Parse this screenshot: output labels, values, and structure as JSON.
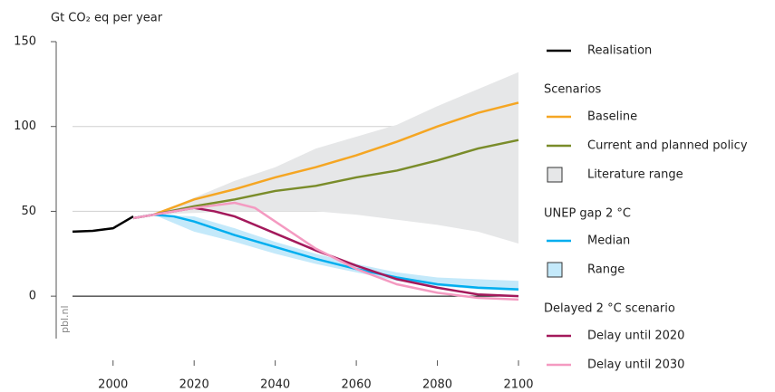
{
  "chart_data": {
    "type": "line",
    "y_axis_label": "Gt CO₂ eq per year",
    "source": "pbl.nl",
    "xlim": [
      1990,
      2100
    ],
    "xticks": [
      2000,
      2020,
      2040,
      2060,
      2080,
      2100
    ],
    "ylim": [
      -25,
      150
    ],
    "yticks": [
      0,
      50,
      100,
      150
    ],
    "groups": [
      {
        "series": [
          {
            "kind": "line",
            "name": "Realisation",
            "color": "#000000",
            "x": [
              1990,
              1995,
              2000,
              2005
            ],
            "values": [
              38,
              38.5,
              40,
              47
            ]
          }
        ]
      },
      {
        "title": "Scenarios",
        "series": [
          {
            "kind": "line",
            "name": "Baseline",
            "color": "#f5a623",
            "x": [
              2005,
              2010,
              2020,
              2030,
              2040,
              2050,
              2060,
              2070,
              2080,
              2090,
              2100
            ],
            "values": [
              46,
              48,
              57,
              63,
              70,
              76,
              83,
              91,
              100,
              108,
              114
            ]
          },
          {
            "kind": "line",
            "name": "Current and planned policy",
            "color": "#7a8c2a",
            "x": [
              2005,
              2010,
              2020,
              2030,
              2040,
              2050,
              2060,
              2070,
              2080,
              2090,
              2100
            ],
            "values": [
              46,
              48,
              53,
              57,
              62,
              65,
              70,
              74,
              80,
              87,
              92
            ]
          },
          {
            "kind": "band",
            "name": "Literature range",
            "color": "#e6e7e8",
            "x": [
              2005,
              2010,
              2020,
              2030,
              2040,
              2050,
              2060,
              2070,
              2080,
              2090,
              2100
            ],
            "upper": [
              46,
              48,
              58,
              68,
              76,
              87,
              94,
              101,
              112,
              122,
              132
            ],
            "lower": [
              46,
              48,
              49,
              50,
              50,
              50,
              48,
              45,
              42,
              38,
              31
            ]
          }
        ]
      },
      {
        "title": "UNEP gap 2 °C",
        "series": [
          {
            "kind": "line",
            "name": "Median",
            "color": "#00aeef",
            "x": [
              2005,
              2010,
              2015,
              2020,
              2030,
              2040,
              2050,
              2060,
              2070,
              2080,
              2090,
              2100
            ],
            "values": [
              46,
              48,
              47,
              44,
              36,
              29,
              22,
              16,
              11,
              7,
              5,
              4
            ]
          },
          {
            "kind": "band",
            "name": "Range",
            "color": "#c4e9fa",
            "x": [
              2010,
              2020,
              2030,
              2040,
              2050,
              2060,
              2070,
              2080,
              2090,
              2100
            ],
            "upper": [
              48,
              47,
              40,
              32,
              25,
              19,
              14,
              11,
              10,
              9
            ],
            "lower": [
              48,
              38,
              32,
              25,
              19,
              14,
              9,
              6,
              4,
              3
            ]
          }
        ]
      },
      {
        "title": "Delayed 2 °C scenario",
        "series": [
          {
            "kind": "line",
            "name": "Delay until 2020",
            "color": "#a3195b",
            "x": [
              2005,
              2010,
              2020,
              2025,
              2030,
              2040,
              2050,
              2060,
              2070,
              2080,
              2090,
              2100
            ],
            "values": [
              46,
              48,
              52,
              50,
              47,
              37,
              27,
              18,
              10,
              5,
              1,
              0
            ]
          },
          {
            "kind": "line",
            "name": "Delay until 2030",
            "color": "#f49ac1",
            "x": [
              2005,
              2010,
              2020,
              2030,
              2035,
              2040,
              2050,
              2060,
              2070,
              2080,
              2090,
              2100
            ],
            "values": [
              46,
              48,
              52,
              55,
              52,
              44,
              28,
              16,
              7,
              2,
              -1,
              -2
            ]
          }
        ]
      }
    ]
  }
}
